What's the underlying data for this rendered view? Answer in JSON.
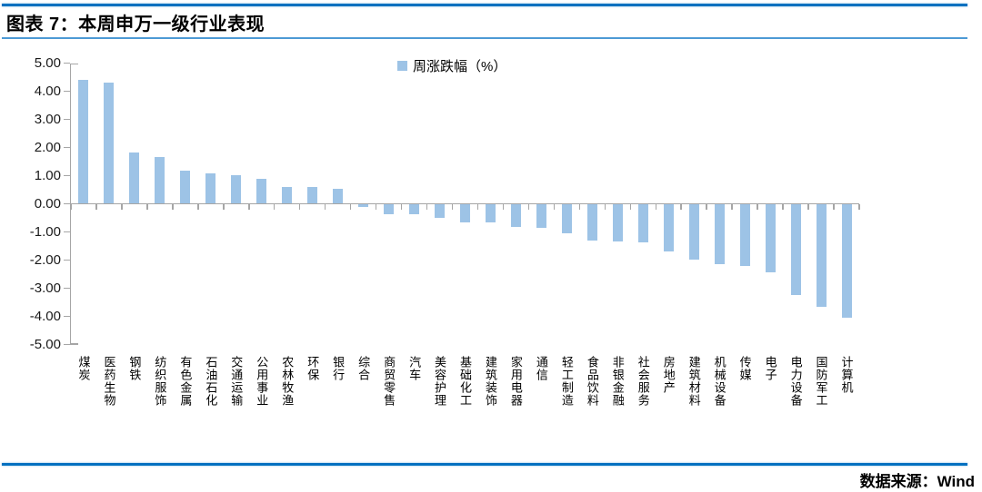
{
  "header": {
    "title": "图表 7：本周申万一级行业表现"
  },
  "footer": {
    "source": "数据来源：Wind"
  },
  "colors": {
    "accent_blue": "#0070C0",
    "title_rule_blue": "#4D9AD5",
    "bar_blue": "#9DC3E6",
    "axis_gray": "#A6A6A6"
  },
  "chart_data": {
    "type": "bar",
    "title": "本周申万一级行业表现",
    "legend": [
      "周涨跌幅（%）"
    ],
    "legend_position": "top-center",
    "ylabel": "",
    "xlabel": "",
    "ylim": [
      -5,
      5
    ],
    "ytick_step": 1,
    "ytick_labels": [
      "5.00",
      "4.00",
      "3.00",
      "2.00",
      "1.00",
      "0.00",
      "-1.00",
      "-2.00",
      "-3.00",
      "-4.00",
      "-5.00"
    ],
    "grid": false,
    "categories": [
      "煤炭",
      "医药生物",
      "钢铁",
      "纺织服饰",
      "有色金属",
      "石油石化",
      "交通运输",
      "公用事业",
      "农林牧渔",
      "环保",
      "银行",
      "综合",
      "商贸零售",
      "汽车",
      "美容护理",
      "基础化工",
      "建筑装饰",
      "家用电器",
      "通信",
      "轻工制造",
      "食品饮料",
      "非银金融",
      "社会服务",
      "房地产",
      "建筑材料",
      "机械设备",
      "传媒",
      "电子",
      "电力设备",
      "国防军工",
      "计算机"
    ],
    "values": [
      4.39,
      4.3,
      1.82,
      1.66,
      1.17,
      1.09,
      1.01,
      0.88,
      0.61,
      0.59,
      0.52,
      -0.11,
      -0.36,
      -0.38,
      -0.51,
      -0.65,
      -0.67,
      -0.81,
      -0.84,
      -1.05,
      -1.32,
      -1.34,
      -1.37,
      -1.7,
      -1.97,
      -2.16,
      -2.2,
      -2.42,
      -3.25,
      -3.65,
      -4.05
    ]
  }
}
